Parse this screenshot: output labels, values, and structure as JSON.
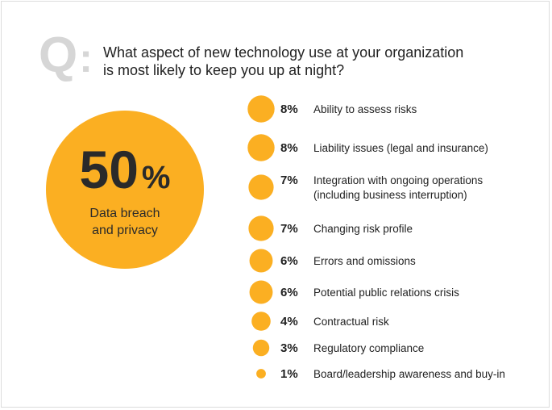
{
  "question": {
    "mark": "Q",
    "mark_colon": ":",
    "line1": "What aspect of new technology use at your organization",
    "line2": "is most likely to keep you up at night?"
  },
  "colors": {
    "accent": "#FBAF22",
    "text": "#222222",
    "mark": "#D6D6D6"
  },
  "chart_data": {
    "type": "bubble",
    "title": "What aspect of new technology use at your organization is most likely to keep you up at night?",
    "unit": "%",
    "highlight": {
      "label_lines": [
        "Data breach",
        "and privacy"
      ],
      "value": 50
    },
    "items": [
      {
        "label_lines": [
          "Ability to assess risks"
        ],
        "value": 8
      },
      {
        "label_lines": [
          "Liability issues (legal and insurance)"
        ],
        "value": 8
      },
      {
        "label_lines": [
          "Integration with ongoing operations",
          "(including business interruption)"
        ],
        "value": 7
      },
      {
        "label_lines": [
          "Changing risk profile"
        ],
        "value": 7
      },
      {
        "label_lines": [
          "Errors and omissions"
        ],
        "value": 6
      },
      {
        "label_lines": [
          "Potential public relations crisis"
        ],
        "value": 6
      },
      {
        "label_lines": [
          "Contractual risk"
        ],
        "value": 4
      },
      {
        "label_lines": [
          "Regulatory compliance"
        ],
        "value": 3
      },
      {
        "label_lines": [
          "Board/leadership awareness and buy-in"
        ],
        "value": 1
      }
    ]
  }
}
